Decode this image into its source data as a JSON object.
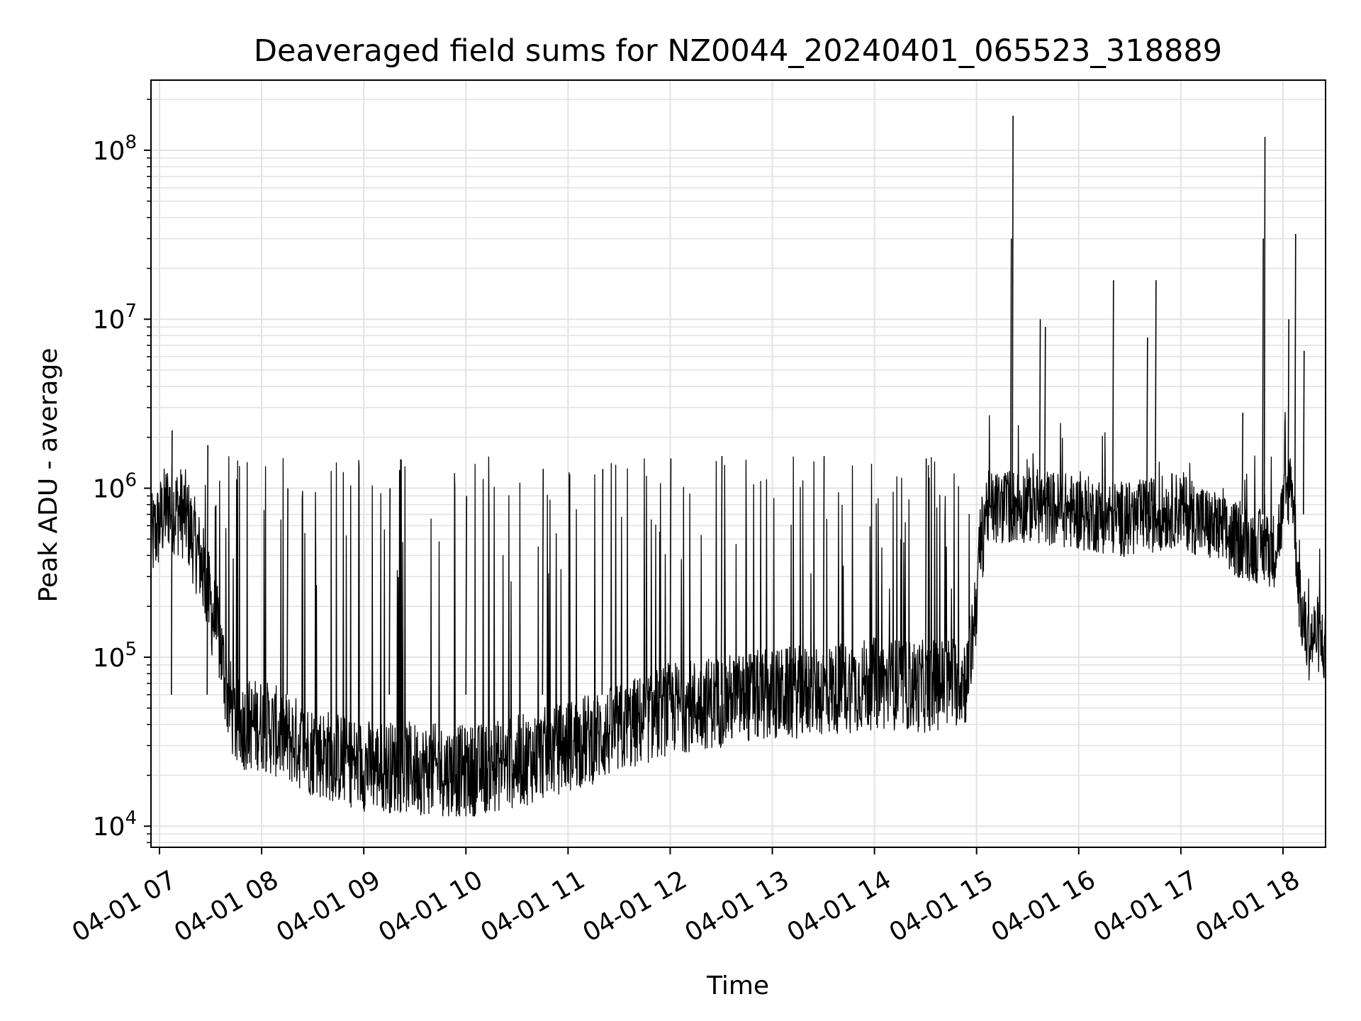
{
  "chart_data": {
    "type": "line",
    "title": "Deaveraged field sums for NZ0044_20240401_065523_318889",
    "xlabel": "Time",
    "ylabel": "Peak ADU - average",
    "yscale": "log",
    "ylim": [
      7500,
      260000000
    ],
    "xlim": [
      "2024-04-01 06:55",
      "2024-04-01 18:25"
    ],
    "grid": true,
    "line_color": "#000000",
    "grid_color": "#e3e3e3",
    "x_ticks": [
      {
        "t": "2024-04-01 07:00",
        "label": "04-01 07"
      },
      {
        "t": "2024-04-01 08:00",
        "label": "04-01 08"
      },
      {
        "t": "2024-04-01 09:00",
        "label": "04-01 09"
      },
      {
        "t": "2024-04-01 10:00",
        "label": "04-01 10"
      },
      {
        "t": "2024-04-01 11:00",
        "label": "04-01 11"
      },
      {
        "t": "2024-04-01 12:00",
        "label": "04-01 12"
      },
      {
        "t": "2024-04-01 13:00",
        "label": "04-01 13"
      },
      {
        "t": "2024-04-01 14:00",
        "label": "04-01 14"
      },
      {
        "t": "2024-04-01 15:00",
        "label": "04-01 15"
      },
      {
        "t": "2024-04-01 16:00",
        "label": "04-01 16"
      },
      {
        "t": "2024-04-01 17:00",
        "label": "04-01 17"
      },
      {
        "t": "2024-04-01 18:00",
        "label": "04-01 18"
      }
    ],
    "y_ticks": [
      {
        "value": 10000,
        "mantissa": "10",
        "exponent": "4"
      },
      {
        "value": 100000,
        "mantissa": "10",
        "exponent": "5"
      },
      {
        "value": 1000000,
        "mantissa": "10",
        "exponent": "6"
      },
      {
        "value": 10000000,
        "mantissa": "10",
        "exponent": "7"
      },
      {
        "value": 100000000,
        "mantissa": "10",
        "exponent": "8"
      }
    ],
    "series": [
      {
        "x": [
          "2024-04-01 06:55",
          "2024-04-01 07:05",
          "2024-04-01 07:15",
          "2024-04-01 07:25",
          "2024-04-01 07:30",
          "2024-04-01 07:35",
          "2024-04-01 07:40",
          "2024-04-01 07:45",
          "2024-04-01 08:00",
          "2024-04-01 08:30",
          "2024-04-01 09:00",
          "2024-04-01 09:30",
          "2024-04-01 10:00",
          "2024-04-01 10:30",
          "2024-04-01 11:00",
          "2024-04-01 11:30",
          "2024-04-01 12:00",
          "2024-04-01 12:30",
          "2024-04-01 13:00",
          "2024-04-01 13:30",
          "2024-04-01 14:00",
          "2024-04-01 14:30",
          "2024-04-01 14:55",
          "2024-04-01 15:05",
          "2024-04-01 15:30",
          "2024-04-01 16:00",
          "2024-04-01 16:30",
          "2024-04-01 17:00",
          "2024-04-01 17:30",
          "2024-04-01 17:55",
          "2024-04-01 18:05",
          "2024-04-01 18:10",
          "2024-04-01 18:15",
          "2024-04-01 18:20",
          "2024-04-01 18:25"
        ],
        "y": [
          480000,
          800000,
          700000,
          350000,
          200000,
          130000,
          60000,
          40000,
          40000,
          28000,
          23000,
          22000,
          21000,
          24000,
          30000,
          37000,
          50000,
          55000,
          60000,
          64000,
          70000,
          67000,
          75000,
          750000,
          800000,
          720000,
          650000,
          760000,
          500000,
          430000,
          1200000,
          200000,
          120000,
          140000,
          110000
        ]
      }
    ],
    "spikes": [
      {
        "t": "2024-04-01 07:07",
        "y": 2200000
      },
      {
        "t": "2024-04-01 07:28",
        "y": 1800000
      },
      {
        "t": "2024-04-01 08:15",
        "y": 1000000
      },
      {
        "t": "2024-04-01 09:15",
        "y": 1000000
      },
      {
        "t": "2024-04-01 10:00",
        "y": 900000
      },
      {
        "t": "2024-04-01 10:45",
        "y": 1300000
      },
      {
        "t": "2024-04-01 11:20",
        "y": 1300000
      },
      {
        "t": "2024-04-01 12:00",
        "y": 1500000
      },
      {
        "t": "2024-04-01 12:30",
        "y": 1550000
      },
      {
        "t": "2024-04-01 13:30",
        "y": 1550000
      },
      {
        "t": "2024-04-01 14:30",
        "y": 1500000
      },
      {
        "t": "2024-04-01 15:21",
        "y": 160000000
      },
      {
        "t": "2024-04-01 15:20",
        "y": 30000000
      },
      {
        "t": "2024-04-01 15:37",
        "y": 10000000
      },
      {
        "t": "2024-04-01 15:40",
        "y": 9000000
      },
      {
        "t": "2024-04-01 16:20",
        "y": 17000000
      },
      {
        "t": "2024-04-01 16:45",
        "y": 17000000
      },
      {
        "t": "2024-04-01 16:40",
        "y": 7800000
      },
      {
        "t": "2024-04-01 17:48",
        "y": 30000000
      },
      {
        "t": "2024-04-01 17:49",
        "y": 120000000
      },
      {
        "t": "2024-04-01 18:07",
        "y": 32000000
      },
      {
        "t": "2024-04-01 18:03",
        "y": 10000000
      },
      {
        "t": "2024-04-01 18:12",
        "y": 6500000
      },
      {
        "t": "2024-04-01 17:36",
        "y": 2800000
      }
    ]
  }
}
